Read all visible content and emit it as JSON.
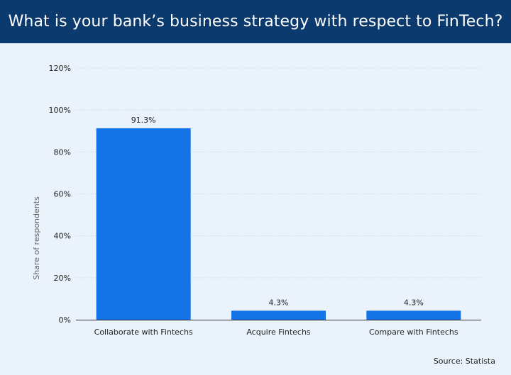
{
  "header": {
    "title": "What is your bank’s business strategy with respect to FinTech?"
  },
  "source": "Source: Statista",
  "colors": {
    "header_bg": "#0b3a6e",
    "background": "#eaf3fb",
    "bar": "#1473e6",
    "grid": "#c9d3dd"
  },
  "chart_data": {
    "type": "bar",
    "categories": [
      "Collaborate with Fintechs",
      "Acquire Fintechs",
      "Compare with Fintechs"
    ],
    "values": [
      91.3,
      4.3,
      4.3
    ],
    "data_labels": [
      "91.3%",
      "4.3%",
      "4.3%"
    ],
    "ylabel": "Share of respondents",
    "ylim": [
      0,
      120
    ],
    "yticks": [
      0,
      20,
      40,
      60,
      80,
      100,
      120
    ],
    "ytick_labels": [
      "0%",
      "20%",
      "40%",
      "60%",
      "80%",
      "100%",
      "120%"
    ],
    "grid": true
  }
}
